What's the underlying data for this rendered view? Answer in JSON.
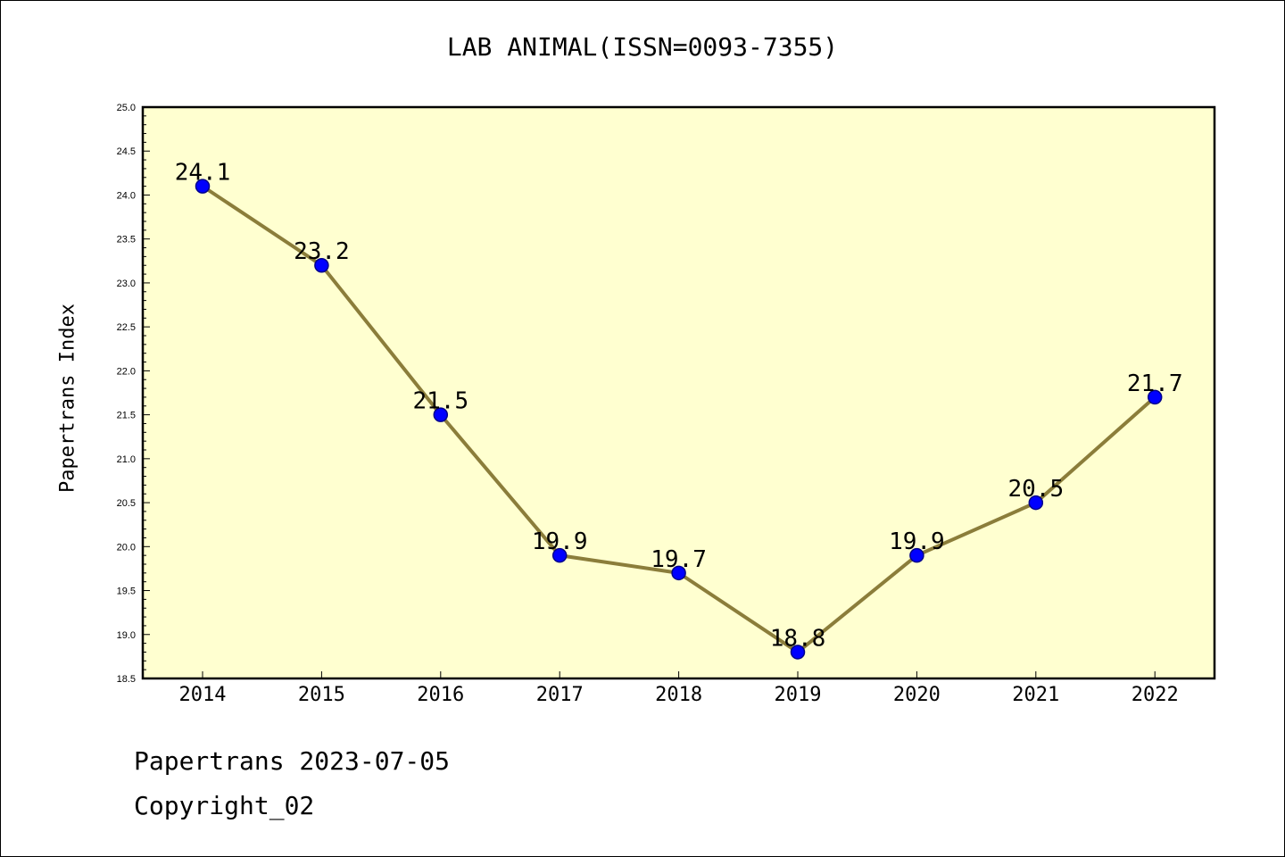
{
  "colors": {
    "plot_background": "#ffffd0",
    "line": "#8b7d3a",
    "marker_fill": "#0000ff",
    "marker_stroke": "#00008b"
  },
  "chart_data": {
    "type": "line",
    "title": "LAB ANIMAL(ISSN=0093-7355)",
    "xlabel": "",
    "ylabel": "Papertrans Index",
    "ylim": [
      18.5,
      25.0
    ],
    "yticks": [
      "18.5",
      "19.0",
      "19.5",
      "20.0",
      "20.5",
      "21.0",
      "21.5",
      "22.0",
      "22.5",
      "23.0",
      "23.5",
      "24.0",
      "24.5",
      "25.0"
    ],
    "categories": [
      "2014",
      "2015",
      "2016",
      "2017",
      "2018",
      "2019",
      "2020",
      "2021",
      "2022"
    ],
    "series": [
      {
        "values": [
          24.1,
          23.2,
          21.5,
          19.9,
          19.7,
          18.8,
          19.9,
          20.5,
          21.7
        ],
        "labels": [
          "24.1",
          "23.2",
          "21.5",
          "19.9",
          "19.7",
          "18.8",
          "19.9",
          "20.5",
          "21.7"
        ]
      }
    ],
    "grid": false,
    "legend": "none"
  },
  "footer": {
    "line1": "Papertrans 2023-07-05",
    "line2": "Copyright_02"
  }
}
